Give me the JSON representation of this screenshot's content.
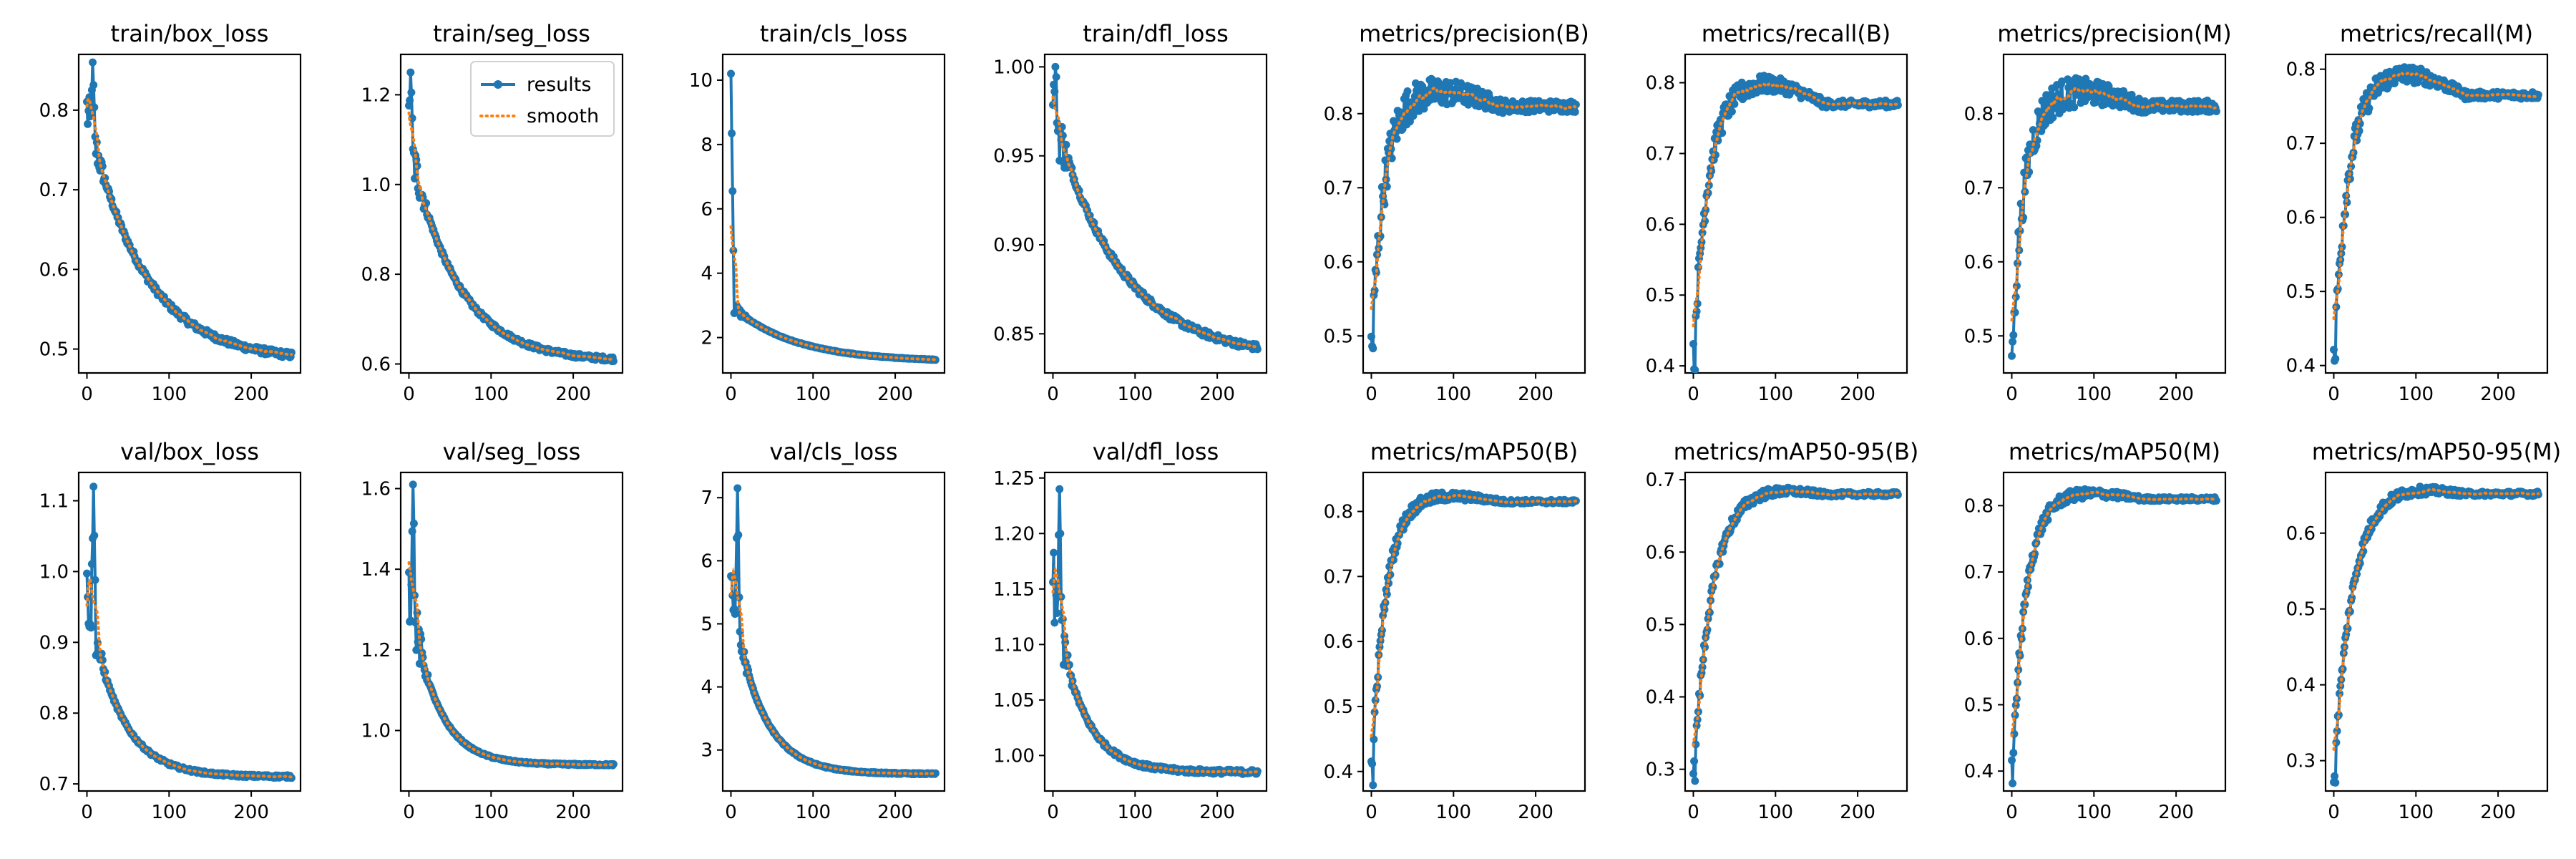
{
  "figure": {
    "legend": {
      "results_label": "results",
      "smooth_label": "smooth"
    },
    "colors": {
      "results": "#1f77b4",
      "smooth": "#ff7f0e"
    }
  },
  "chart_data": [
    {
      "type": "line",
      "title": "train/box_loss",
      "xlim": [
        -10,
        260
      ],
      "ylim": [
        0.47,
        0.87
      ],
      "xticks": [
        0,
        100,
        200
      ],
      "yticks": [
        0.5,
        0.6,
        0.7,
        0.8
      ],
      "shape": {
        "kind": "decay",
        "start": 0.8,
        "end": 0.485,
        "k": 1.7,
        "peak": 0.86,
        "peakEpoch": 7,
        "noise": 0.004,
        "earlyNoise": 0.03
      }
    },
    {
      "type": "line",
      "title": "train/seg_loss",
      "xlim": [
        -10,
        260
      ],
      "ylim": [
        0.58,
        1.29
      ],
      "xticks": [
        0,
        100,
        200
      ],
      "yticks": [
        0.6,
        0.8,
        1.0,
        1.2
      ],
      "legend": "top-right",
      "shape": {
        "kind": "decay",
        "start": 1.1,
        "end": 0.605,
        "k": 2.0,
        "peak": 1.25,
        "peakEpoch": 2,
        "noise": 0.005,
        "earlyNoise": 0.06
      }
    },
    {
      "type": "line",
      "title": "train/cls_loss",
      "xlim": [
        -10,
        260
      ],
      "ylim": [
        0.9,
        10.8
      ],
      "xticks": [
        0,
        100,
        200
      ],
      "yticks": [
        2,
        4,
        6,
        8,
        10
      ],
      "shape": {
        "kind": "decay",
        "start": 3.0,
        "end": 1.25,
        "k": 1.5,
        "peak": 10.2,
        "peakEpoch": 0,
        "spikeDecay": 4,
        "noise": 0.01,
        "earlyNoise": 0.2
      }
    },
    {
      "type": "line",
      "title": "train/dfl_loss",
      "xlim": [
        -10,
        260
      ],
      "ylim": [
        0.828,
        1.007
      ],
      "xticks": [
        0,
        100,
        200
      ],
      "yticks": [
        0.85,
        0.9,
        0.95,
        1.0
      ],
      "shape": {
        "kind": "decay",
        "start": 0.975,
        "end": 0.836,
        "k": 1.4,
        "peak": 1.0,
        "peakEpoch": 3,
        "noise": 0.0018,
        "earlyNoise": 0.02
      }
    },
    {
      "type": "line",
      "title": "metrics/precision(B)",
      "xlim": [
        -10,
        260
      ],
      "ylim": [
        0.45,
        0.88
      ],
      "xticks": [
        0,
        100,
        200
      ],
      "yticks": [
        0.5,
        0.6,
        0.7,
        0.8
      ],
      "shape": {
        "kind": "rise",
        "start": 0.47,
        "end": 0.81,
        "k": 0.07,
        "noise": 0.03,
        "noiseEnd": 0.008,
        "bump": 0.02
      }
    },
    {
      "type": "line",
      "title": "metrics/recall(B)",
      "xlim": [
        -10,
        260
      ],
      "ylim": [
        0.39,
        0.84
      ],
      "xticks": [
        0,
        100,
        200
      ],
      "yticks": [
        0.4,
        0.5,
        0.6,
        0.7,
        0.8
      ],
      "shape": {
        "kind": "rise",
        "start": 0.41,
        "end": 0.77,
        "k": 0.06,
        "noise": 0.02,
        "noiseEnd": 0.005,
        "bump": 0.03
      }
    },
    {
      "type": "line",
      "title": "metrics/precision(M)",
      "xlim": [
        -10,
        260
      ],
      "ylim": [
        0.45,
        0.88
      ],
      "xticks": [
        0,
        100,
        200
      ],
      "yticks": [
        0.5,
        0.6,
        0.7,
        0.8
      ],
      "shape": {
        "kind": "rise",
        "start": 0.47,
        "end": 0.81,
        "k": 0.07,
        "noise": 0.03,
        "noiseEnd": 0.008,
        "bump": 0.02
      }
    },
    {
      "type": "line",
      "title": "metrics/recall(M)",
      "xlim": [
        -10,
        260
      ],
      "ylim": [
        0.39,
        0.82
      ],
      "xticks": [
        0,
        100,
        200
      ],
      "yticks": [
        0.4,
        0.5,
        0.6,
        0.7,
        0.8
      ],
      "shape": {
        "kind": "rise",
        "start": 0.41,
        "end": 0.765,
        "k": 0.06,
        "noise": 0.02,
        "noiseEnd": 0.005,
        "bump": 0.03
      }
    },
    {
      "type": "line",
      "title": "val/box_loss",
      "xlim": [
        -10,
        260
      ],
      "ylim": [
        0.69,
        1.14
      ],
      "xticks": [
        0,
        100,
        200
      ],
      "yticks": [
        0.7,
        0.8,
        0.9,
        1.0,
        1.1
      ],
      "shape": {
        "kind": "decay",
        "start": 0.97,
        "end": 0.71,
        "k": 3.0,
        "peak": 1.12,
        "peakEpoch": 8,
        "noise": 0.002,
        "earlyNoise": 0.04
      }
    },
    {
      "type": "line",
      "title": "val/seg_loss",
      "xlim": [
        -10,
        260
      ],
      "ylim": [
        0.85,
        1.64
      ],
      "xticks": [
        0,
        100,
        200
      ],
      "yticks": [
        1.0,
        1.2,
        1.4,
        1.6
      ],
      "shape": {
        "kind": "decay",
        "start": 1.35,
        "end": 0.915,
        "k": 3.5,
        "peak": 1.61,
        "peakEpoch": 5,
        "noise": 0.002,
        "earlyNoise": 0.1
      }
    },
    {
      "type": "line",
      "title": "val/cls_loss",
      "xlim": [
        -10,
        260
      ],
      "ylim": [
        2.35,
        7.4
      ],
      "xticks": [
        0,
        100,
        200
      ],
      "yticks": [
        3,
        4,
        5,
        6,
        7
      ],
      "shape": {
        "kind": "decay",
        "start": 5.5,
        "end": 2.62,
        "k": 3.2,
        "peak": 7.15,
        "peakEpoch": 8,
        "noise": 0.01,
        "earlyNoise": 0.4
      }
    },
    {
      "type": "line",
      "title": "val/dfl_loss",
      "xlim": [
        -10,
        260
      ],
      "ylim": [
        0.968,
        1.255
      ],
      "xticks": [
        0,
        100,
        200
      ],
      "yticks": [
        1.0,
        1.05,
        1.1,
        1.15,
        1.2,
        1.25
      ],
      "shape": {
        "kind": "decay",
        "start": 1.15,
        "end": 0.985,
        "k": 3.4,
        "peak": 1.24,
        "peakEpoch": 8,
        "noise": 0.002,
        "earlyNoise": 0.04
      }
    },
    {
      "type": "line",
      "title": "metrics/mAP50(B)",
      "xlim": [
        -10,
        260
      ],
      "ylim": [
        0.37,
        0.86
      ],
      "xticks": [
        0,
        100,
        200
      ],
      "yticks": [
        0.4,
        0.5,
        0.6,
        0.7,
        0.8
      ],
      "shape": {
        "kind": "rise",
        "start": 0.39,
        "end": 0.815,
        "k": 0.06,
        "noise": 0.012,
        "noiseEnd": 0.003,
        "bump": 0.01
      }
    },
    {
      "type": "line",
      "title": "metrics/mAP50-95(B)",
      "xlim": [
        -10,
        260
      ],
      "ylim": [
        0.27,
        0.71
      ],
      "xticks": [
        0,
        100,
        200
      ],
      "yticks": [
        0.3,
        0.4,
        0.5,
        0.6,
        0.7
      ],
      "shape": {
        "kind": "rise",
        "start": 0.29,
        "end": 0.68,
        "k": 0.045,
        "noise": 0.01,
        "noiseEnd": 0.003,
        "bump": 0.008
      }
    },
    {
      "type": "line",
      "title": "metrics/mAP50(M)",
      "xlim": [
        -10,
        260
      ],
      "ylim": [
        0.37,
        0.85
      ],
      "xticks": [
        0,
        100,
        200
      ],
      "yticks": [
        0.4,
        0.5,
        0.6,
        0.7,
        0.8
      ],
      "shape": {
        "kind": "rise",
        "start": 0.39,
        "end": 0.81,
        "k": 0.06,
        "noise": 0.012,
        "noiseEnd": 0.003,
        "bump": 0.01
      }
    },
    {
      "type": "line",
      "title": "metrics/mAP50-95(M)",
      "xlim": [
        -10,
        260
      ],
      "ylim": [
        0.26,
        0.68
      ],
      "xticks": [
        0,
        100,
        200
      ],
      "yticks": [
        0.3,
        0.4,
        0.5,
        0.6
      ],
      "shape": {
        "kind": "rise",
        "start": 0.28,
        "end": 0.652,
        "k": 0.045,
        "noise": 0.01,
        "noiseEnd": 0.003,
        "bump": 0.008
      }
    }
  ]
}
